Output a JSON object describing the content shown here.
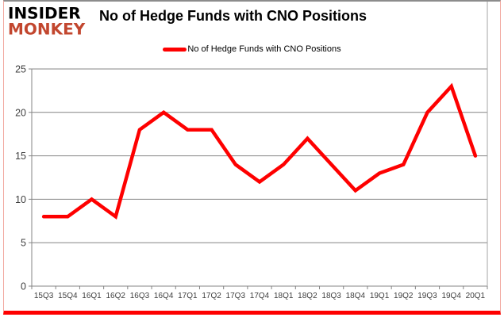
{
  "logo": {
    "line1": "INSIDER",
    "line2": "MONKEY"
  },
  "header": {
    "title": "No of Hedge Funds with CNO Positions"
  },
  "legend": {
    "label": "No of Hedge Funds with CNO Positions"
  },
  "colors": {
    "line": "#fe0000",
    "logo_red": "#c2462e",
    "grid": "#848484",
    "plot_border": "#a6a6a6",
    "axis_text": "#3f3f3f",
    "frame_bottom": "#fe0000",
    "frame_side": "#f2a9a0",
    "frame_top": "#8c8c8c"
  },
  "chart_data": {
    "type": "line",
    "title": "No of Hedge Funds with CNO Positions",
    "categories": [
      "15Q3",
      "15Q4",
      "16Q1",
      "16Q2",
      "16Q3",
      "16Q4",
      "17Q1",
      "17Q2",
      "17Q3",
      "17Q4",
      "18Q1",
      "18Q2",
      "18Q3",
      "18Q4",
      "19Q1",
      "19Q2",
      "19Q3",
      "19Q4",
      "20Q1"
    ],
    "series": [
      {
        "name": "No of Hedge Funds with CNO Positions",
        "values": [
          8,
          8,
          10,
          8,
          18,
          20,
          18,
          18,
          14,
          12,
          14,
          17,
          14,
          11,
          13,
          14,
          20,
          23,
          15
        ]
      }
    ],
    "xlabel": "",
    "ylabel": "",
    "ylim": [
      0,
      25
    ],
    "yticks": [
      0,
      5,
      10,
      15,
      20,
      25
    ],
    "grid": true,
    "legend_position": "top-center",
    "line_color": "#fe0000"
  }
}
